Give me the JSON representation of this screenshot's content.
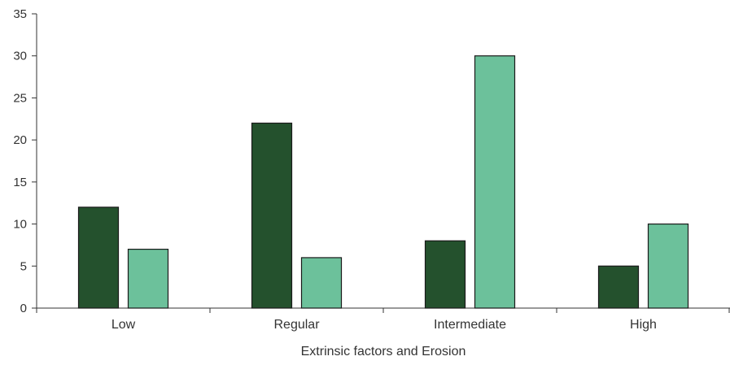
{
  "chart_data": {
    "type": "bar",
    "title": "",
    "xlabel": "Extrinsic factors and Erosion",
    "ylabel": "",
    "categories": [
      "Low",
      "Regular",
      "Intermediate",
      "High"
    ],
    "series": [
      {
        "values": [
          12,
          22,
          8,
          5
        ],
        "color": "#24512d"
      },
      {
        "values": [
          7,
          6,
          30,
          10
        ],
        "color": "#6cc19b"
      }
    ],
    "ylim": [
      0,
      35
    ],
    "yticks": [
      0,
      5,
      10,
      15,
      20,
      25,
      30,
      35
    ],
    "grid": false,
    "legend": "none"
  }
}
